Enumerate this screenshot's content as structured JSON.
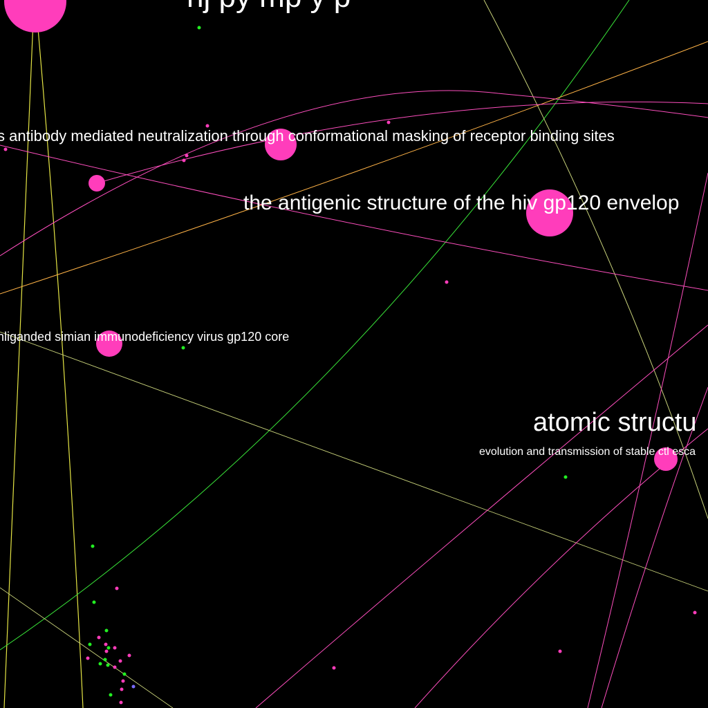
{
  "graph": {
    "background": "#000000",
    "label_color": "#ffffff",
    "colors": {
      "paper_node": "#ff3dbb",
      "green_node": "#22ee22",
      "blue_node": "#7a6cff",
      "edge_yellow": "#e6e645",
      "edge_green": "#39e639",
      "edge_pink": "#ff4fbf",
      "edge_orange": "#ffb347",
      "edge_olive": "#c8d27a"
    },
    "labels": {
      "top_title": "nj    py       mp       y  p",
      "antibody": "s antibody mediated neutralization through conformational masking of receptor binding sites",
      "antigenic": "the antigenic structure of the hiv gp120 envelop",
      "siv": "nliganded simian immunodeficiency virus gp120 core",
      "atomic": "atomic structu",
      "ctl": "evolution and transmission of stable ctl esca"
    }
  }
}
